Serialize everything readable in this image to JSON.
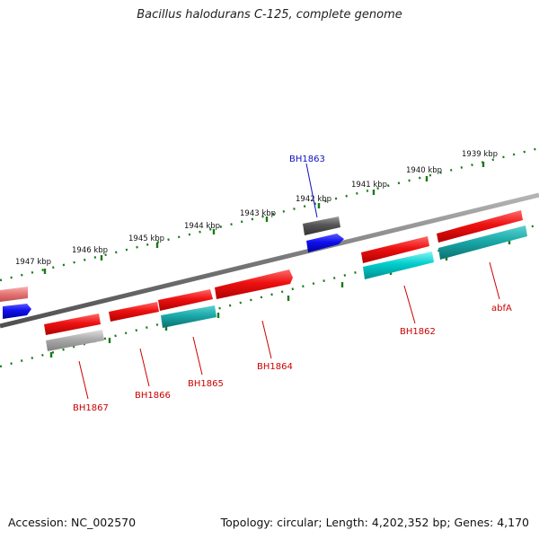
{
  "header": {
    "title": "Bacillus halodurans C-125, complete genome"
  },
  "footer": {
    "accession": "Accession: NC_002570",
    "summary": "Topology: circular; Length: 4,202,352 bp; Genes: 4,170"
  },
  "scale_labels": [
    "1947 kbp",
    "1946 kbp",
    "1945 kbp",
    "1944 kbp",
    "1943 kbp",
    "1942 kbp",
    "1941 kbp",
    "1940 kbp",
    "1939 kbp"
  ],
  "gene_labels": [
    {
      "id": "BH1863",
      "color": "#1010c0"
    },
    {
      "id": "BH1862",
      "color": "#cc0000"
    },
    {
      "id": "abfA",
      "color": "#cc0000"
    },
    {
      "id": "BH1864",
      "color": "#cc0000"
    },
    {
      "id": "BH1865",
      "color": "#cc0000"
    },
    {
      "id": "BH1866",
      "color": "#cc0000"
    },
    {
      "id": "BH1867",
      "color": "#cc0000"
    }
  ],
  "colors": {
    "backbone": "#777777",
    "scale_ticks": "#1a7a1a",
    "gene_red": "#ee1111",
    "gene_cyan": "#00cccc",
    "gene_blue": "#1010ee",
    "gene_gray": "#555555",
    "gene_pink": "#e87878",
    "gene_silver": "#aaaaaa"
  }
}
